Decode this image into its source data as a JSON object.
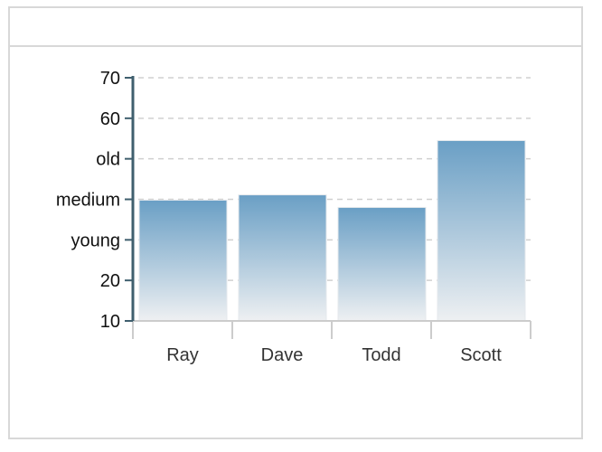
{
  "chart_data": {
    "type": "bar",
    "title": "",
    "xlabel": "",
    "ylabel": "",
    "categories": [
      "Ray",
      "Dave",
      "Todd",
      "Scott"
    ],
    "values": [
      39.8,
      41.1,
      38.0,
      54.5
    ],
    "ylim": [
      10,
      70
    ],
    "yticks": [
      {
        "value": 10,
        "label": "10"
      },
      {
        "value": 20,
        "label": "20"
      },
      {
        "value": 30,
        "label": "young"
      },
      {
        "value": 40,
        "label": "medium"
      },
      {
        "value": 50,
        "label": "old"
      },
      {
        "value": 60,
        "label": "60"
      },
      {
        "value": 70,
        "label": "70"
      }
    ],
    "grid": true,
    "colors": {
      "bar_top": "#6a9fc5",
      "bar_bottom": "#eef0f2",
      "y_axis": "#3f5f6e",
      "x_axis": "#cccccc",
      "grid": "#d0d0d0"
    }
  }
}
